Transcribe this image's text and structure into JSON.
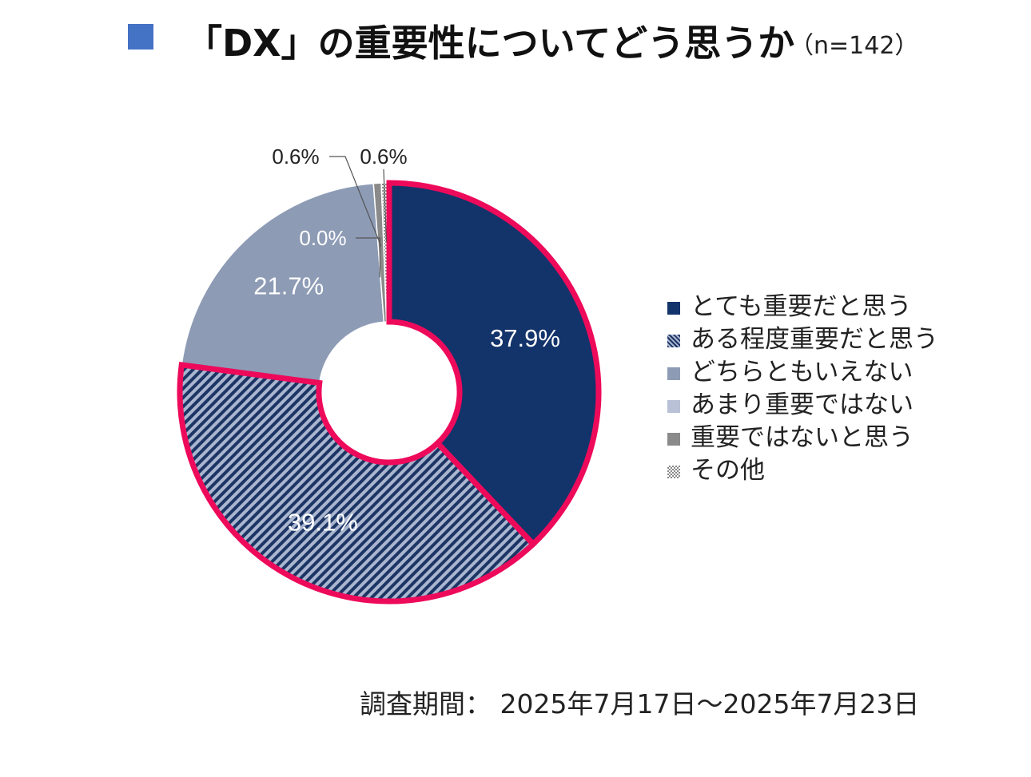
{
  "title": {
    "main": "「DX」の重要性についてどう思うか",
    "n_label": "（n=142）",
    "marker_color": "#4472c4"
  },
  "chart_data": {
    "type": "pie",
    "donut": true,
    "categories": [
      "とても重要だと思う",
      "ある程度重要だと思う",
      "どちらともいえない",
      "あまり重要ではない",
      "重要ではないと思う",
      "その他"
    ],
    "values": [
      37.9,
      39.1,
      21.7,
      0.0,
      0.6,
      0.6
    ],
    "value_labels": [
      "37.9%",
      "39.1%",
      "21.7%",
      "0.0%",
      "0.6%",
      "0.6%"
    ],
    "colors": [
      "#13336b",
      "#8191b0",
      "#8d9bb5",
      "#b9c1d6",
      "#8a8a8a",
      "#c9c9c9"
    ],
    "patterns": [
      "solid",
      "diagonal-stripe",
      "solid",
      "solid",
      "solid",
      "checker"
    ],
    "highlighted": [
      "とても重要だと思う",
      "ある程度重要だと思う"
    ],
    "highlight_color": "#ee0a5a",
    "legend_position": "right"
  },
  "footer": {
    "survey_period": "調査期間： 2025年7月17日～2025年7月23日"
  }
}
